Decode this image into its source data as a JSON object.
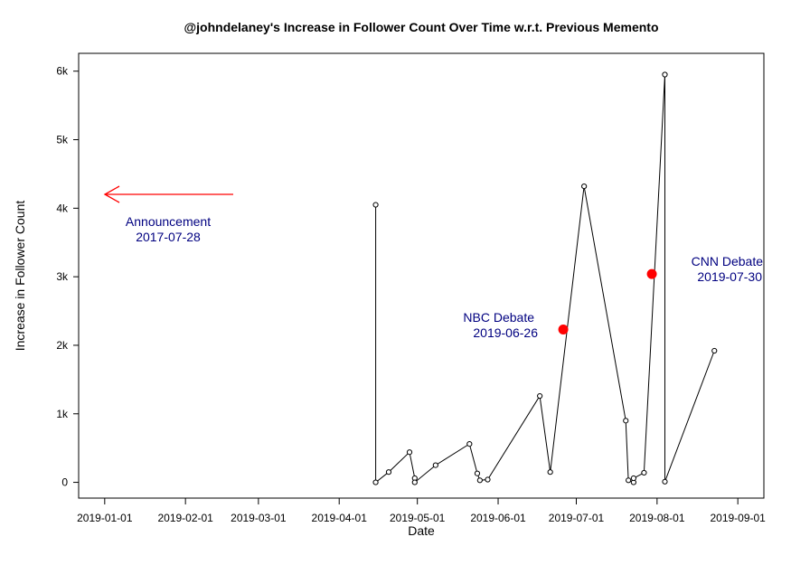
{
  "chart_data": {
    "type": "line",
    "title": "@johndelaney's Increase in Follower Count Over Time w.r.t. Previous Memento",
    "xlabel": "Date",
    "ylabel": "Increase in Follower Count",
    "x_ticks": [
      "2019-01-01",
      "2019-02-01",
      "2019-03-01",
      "2019-04-01",
      "2019-05-01",
      "2019-06-01",
      "2019-07-01",
      "2019-08-01",
      "2019-09-01"
    ],
    "y_ticks": [
      {
        "value": 0,
        "label": "0"
      },
      {
        "value": 1000,
        "label": "1k"
      },
      {
        "value": 2000,
        "label": "2k"
      },
      {
        "value": 3000,
        "label": "3k"
      },
      {
        "value": 4000,
        "label": "4k"
      },
      {
        "value": 5000,
        "label": "5k"
      },
      {
        "value": 6000,
        "label": "6k"
      }
    ],
    "xlim": [
      "2018-12-22",
      "2019-09-11"
    ],
    "ylim": [
      -230,
      6260
    ],
    "series": [
      {
        "color": "#000000",
        "points": [
          {
            "x": "2019-04-15",
            "y": 4050
          },
          {
            "x": "2019-04-15",
            "y": 0
          },
          {
            "x": "2019-04-20",
            "y": 150
          },
          {
            "x": "2019-04-28",
            "y": 440
          },
          {
            "x": "2019-04-30",
            "y": 60
          },
          {
            "x": "2019-04-30",
            "y": 0
          },
          {
            "x": "2019-05-08",
            "y": 250
          },
          {
            "x": "2019-05-21",
            "y": 560
          },
          {
            "x": "2019-05-24",
            "y": 130
          },
          {
            "x": "2019-05-25",
            "y": 30
          },
          {
            "x": "2019-05-28",
            "y": 40
          },
          {
            "x": "2019-06-17",
            "y": 1260
          },
          {
            "x": "2019-06-21",
            "y": 150
          },
          {
            "x": "2019-07-04",
            "y": 4320
          },
          {
            "x": "2019-07-20",
            "y": 900
          },
          {
            "x": "2019-07-21",
            "y": 30
          },
          {
            "x": "2019-07-23",
            "y": 0
          },
          {
            "x": "2019-07-23",
            "y": 60
          },
          {
            "x": "2019-07-27",
            "y": 140
          },
          {
            "x": "2019-08-04",
            "y": 5950
          },
          {
            "x": "2019-08-04",
            "y": 10
          },
          {
            "x": "2019-08-23",
            "y": 1920
          }
        ]
      }
    ],
    "highlights": [
      {
        "x": "2019-06-26",
        "y": 2230,
        "color": "#ff0000"
      },
      {
        "x": "2019-07-30",
        "y": 3040,
        "color": "#ff0000"
      }
    ],
    "annotations": [
      {
        "lines": [
          "Announcement",
          "2017-07-28"
        ],
        "color": "#000080",
        "arrow": "left",
        "arrow_color": "#ff0000"
      },
      {
        "lines": [
          "NBC Debate",
          "2019-06-26"
        ],
        "color": "#000080"
      },
      {
        "lines": [
          "CNN Debate",
          "2019-07-30"
        ],
        "color": "#000080"
      }
    ],
    "grid": false,
    "legend": "none"
  }
}
